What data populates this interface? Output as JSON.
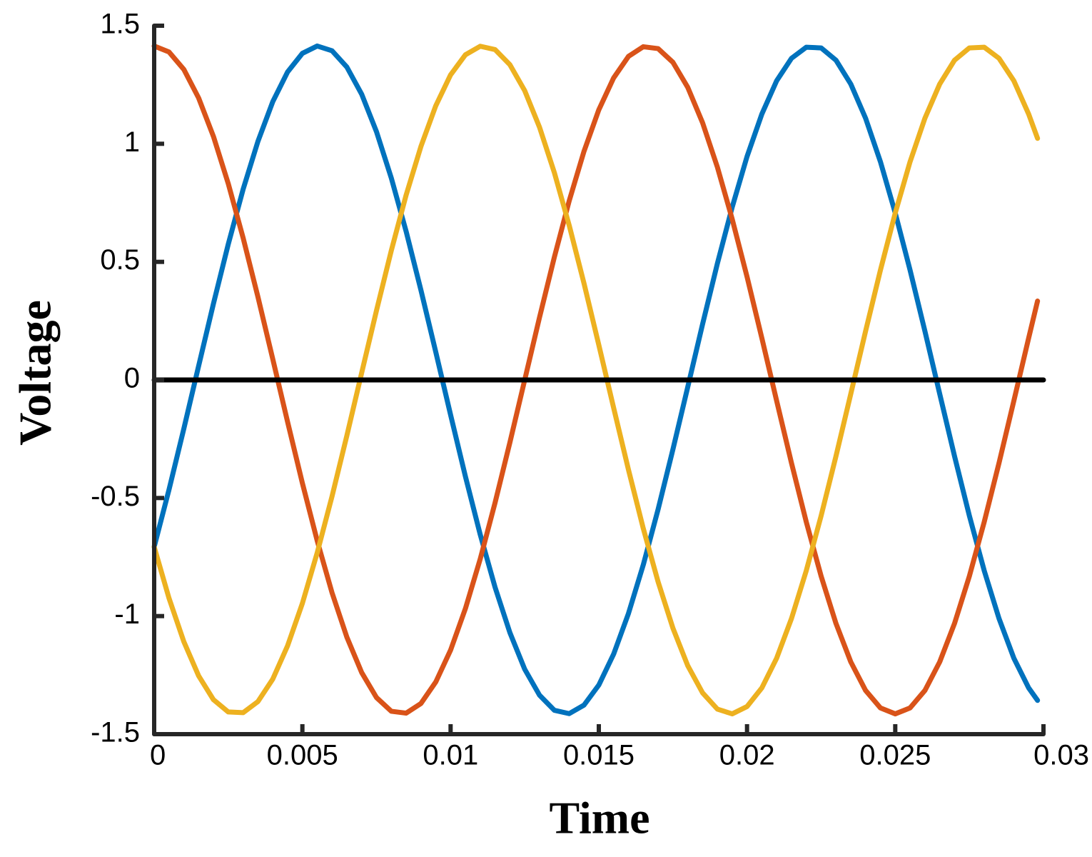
{
  "chart_data": {
    "type": "line",
    "x_label": "Time",
    "y_label": "Voltage",
    "xlim": [
      0,
      0.03
    ],
    "xticks": [
      0,
      0.005,
      0.01,
      0.015,
      0.02,
      0.025,
      0.03
    ],
    "ylim": [
      -1.5,
      1.5
    ],
    "yticks": [
      -1.5,
      -1,
      -0.5,
      0,
      0.5,
      1,
      1.5
    ],
    "hline": {
      "value": 0,
      "color": "#000000"
    },
    "x": [
      0,
      0.0005,
      0.001,
      0.0015,
      0.002,
      0.0025,
      0.003,
      0.0035,
      0.004,
      0.0045,
      0.005,
      0.0055,
      0.006,
      0.0065,
      0.007,
      0.0075,
      0.008,
      0.0085,
      0.009,
      0.0095,
      0.01,
      0.0105,
      0.011,
      0.0115,
      0.012,
      0.0125,
      0.013,
      0.0135,
      0.014,
      0.0145,
      0.015,
      0.0155,
      0.016,
      0.0165,
      0.017,
      0.0175,
      0.018,
      0.0185,
      0.019,
      0.0195,
      0.02,
      0.0205,
      0.021,
      0.0215,
      0.022,
      0.0225,
      0.023,
      0.0235,
      0.024,
      0.0245,
      0.025,
      0.0255,
      0.026,
      0.0265,
      0.027,
      0.0275,
      0.028,
      0.0285,
      0.029,
      0.0295,
      0.0298
    ],
    "series": [
      {
        "color": "#0072BD",
        "values": [
          -0.707,
          -0.465,
          -0.207,
          0.059,
          0.323,
          0.575,
          0.807,
          1.01,
          1.178,
          1.304,
          1.383,
          1.414,
          1.394,
          1.325,
          1.21,
          1.051,
          0.855,
          0.629,
          0.38,
          0.118,
          -0.148,
          -0.409,
          -0.655,
          -0.878,
          -1.07,
          -1.225,
          -1.335,
          -1.399,
          -1.413,
          -1.377,
          -1.292,
          -1.161,
          -0.989,
          -0.783,
          -0.548,
          -0.294,
          -0.03,
          0.236,
          0.493,
          0.732,
          0.946,
          1.126,
          1.267,
          1.362,
          1.409,
          1.406,
          1.354,
          1.253,
          1.108,
          0.924,
          0.707,
          0.465,
          0.207,
          -0.059,
          -0.323,
          -0.575,
          -0.807,
          -1.01,
          -1.178,
          -1.304,
          -1.357
        ]
      },
      {
        "color": "#D95319",
        "values": [
          1.414,
          1.389,
          1.315,
          1.194,
          1.031,
          0.831,
          0.602,
          0.352,
          0.089,
          -0.177,
          -0.437,
          -0.681,
          -0.901,
          -1.089,
          -1.239,
          -1.345,
          -1.403,
          -1.411,
          -1.37,
          -1.279,
          -1.144,
          -0.968,
          -0.758,
          -0.52,
          -0.265,
          0,
          0.265,
          0.52,
          0.758,
          0.968,
          1.144,
          1.279,
          1.37,
          1.411,
          1.403,
          1.345,
          1.239,
          1.089,
          0.901,
          0.681,
          0.437,
          0.177,
          -0.089,
          -0.352,
          -0.602,
          -0.831,
          -1.031,
          -1.194,
          -1.315,
          -1.389,
          -1.414,
          -1.389,
          -1.315,
          -1.194,
          -1.031,
          -0.831,
          -0.602,
          -0.352,
          -0.089,
          0.177,
          0.334
        ]
      },
      {
        "color": "#EDB120",
        "values": [
          -0.707,
          -0.924,
          -1.108,
          -1.253,
          -1.354,
          -1.406,
          -1.409,
          -1.362,
          -1.267,
          -1.126,
          -0.946,
          -0.732,
          -0.493,
          -0.236,
          0.03,
          0.294,
          0.548,
          0.783,
          0.989,
          1.161,
          1.292,
          1.377,
          1.413,
          1.399,
          1.335,
          1.225,
          1.07,
          0.878,
          0.655,
          0.409,
          0.148,
          -0.118,
          -0.38,
          -0.629,
          -0.855,
          -1.051,
          -1.21,
          -1.325,
          -1.394,
          -1.414,
          -1.383,
          -1.304,
          -1.178,
          -1.01,
          -0.807,
          -0.575,
          -0.323,
          -0.059,
          0.207,
          0.465,
          0.707,
          0.924,
          1.108,
          1.253,
          1.354,
          1.406,
          1.409,
          1.362,
          1.267,
          1.126,
          1.023
        ]
      }
    ]
  }
}
